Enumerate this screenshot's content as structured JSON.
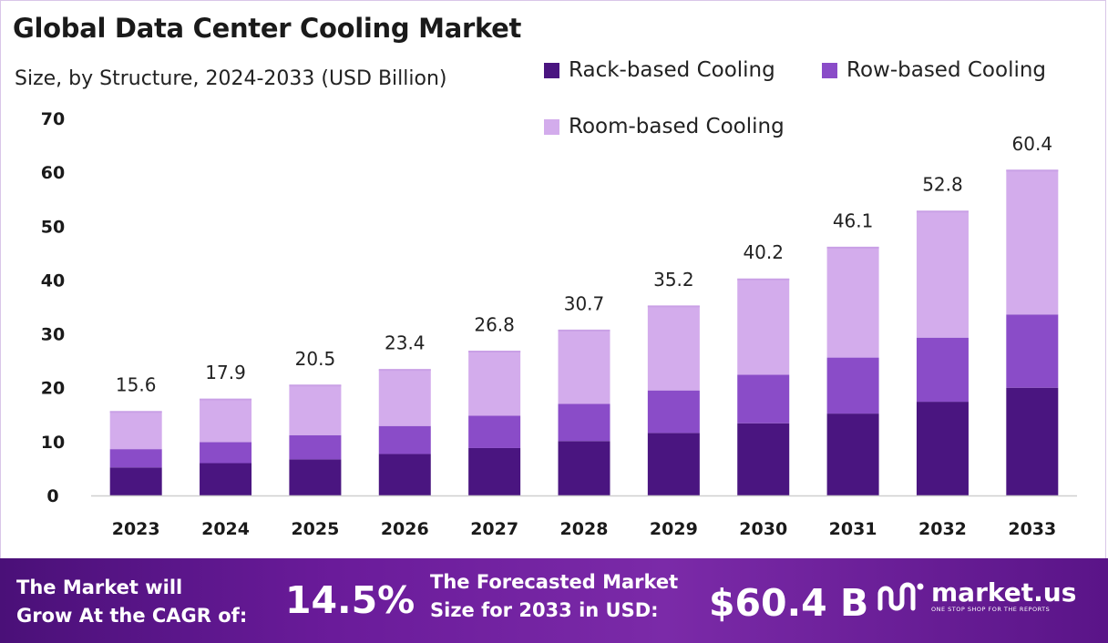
{
  "chart_data": {
    "type": "bar",
    "stacked": true,
    "title": "Global Data Center Cooling Market",
    "subtitle": "Size, by Structure, 2024-2033 (USD Billion)",
    "categories": [
      "2023",
      "2024",
      "2025",
      "2026",
      "2027",
      "2028",
      "2029",
      "2030",
      "2031",
      "2032",
      "2033"
    ],
    "series": [
      {
        "name": "Rack-based Cooling",
        "color": "#4a1580",
        "values": [
          5.2,
          6.0,
          6.7,
          7.7,
          8.8,
          10.1,
          11.6,
          13.4,
          15.2,
          17.4,
          20.0
        ]
      },
      {
        "name": "Row-based Cooling",
        "color": "#8a4cc8",
        "values": [
          3.4,
          3.9,
          4.5,
          5.2,
          6.0,
          6.9,
          7.9,
          9.0,
          10.4,
          11.9,
          13.6
        ]
      },
      {
        "name": "Room-based Cooling",
        "color": "#d3acec",
        "values": [
          7.0,
          8.0,
          9.3,
          10.5,
          12.0,
          13.7,
          15.7,
          17.8,
          20.5,
          23.5,
          26.8
        ]
      }
    ],
    "totals": [
      "15.6",
      "17.9",
      "20.5",
      "23.4",
      "26.8",
      "30.7",
      "35.2",
      "40.2",
      "46.1",
      "52.8",
      "60.4"
    ],
    "ylim": [
      0,
      70
    ],
    "yticks": [
      0,
      10,
      20,
      30,
      40,
      50,
      60,
      70
    ],
    "legend_position": "top-right",
    "grid": false
  },
  "banner": {
    "cagr_label_line1": "The Market will",
    "cagr_label_line2": "Grow At the CAGR of:",
    "cagr_value": "14.5%",
    "forecast_label_line1": "The Forecasted Market",
    "forecast_label_line2": "Size for 2033 in USD:",
    "forecast_value": "$60.4 B",
    "brand_name": "market.us",
    "brand_tagline": "ONE STOP SHOP FOR THE REPORTS",
    "brand_icon": "market-us-logo-icon"
  }
}
